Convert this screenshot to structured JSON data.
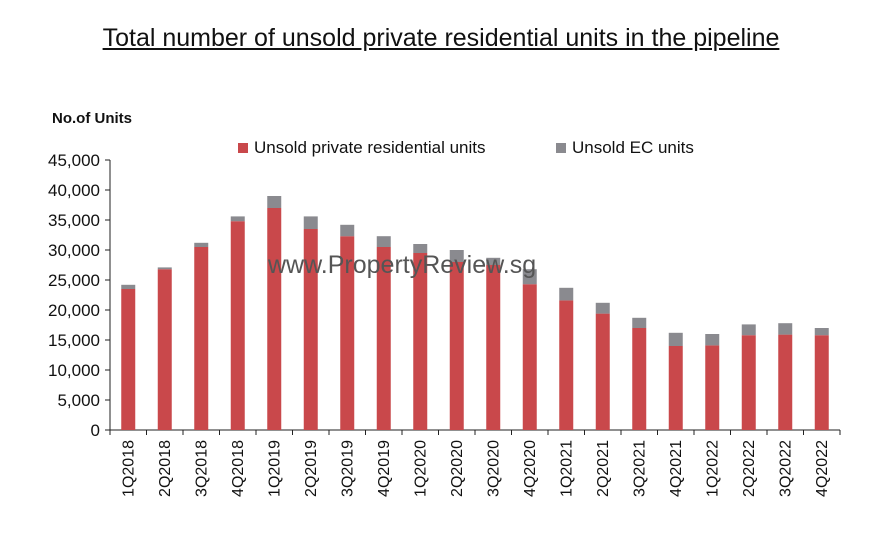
{
  "chart_data": {
    "type": "bar",
    "stacked": true,
    "title": "Total number of unsold private residential units in the pipeline",
    "ylabel": "No.of Units",
    "xlabel": "",
    "ylim": [
      0,
      45000
    ],
    "yticks": [
      "45,000",
      "40,000",
      "35,000",
      "30,000",
      "25,000",
      "20,000",
      "15,000",
      "10,000",
      "5,000",
      "0"
    ],
    "ytick_values": [
      45000,
      40000,
      35000,
      30000,
      25000,
      20000,
      15000,
      10000,
      5000,
      0
    ],
    "categories": [
      "1Q2018",
      "2Q2018",
      "3Q2018",
      "4Q2018",
      "1Q2019",
      "2Q2019",
      "3Q2019",
      "4Q2019",
      "1Q2020",
      "2Q2020",
      "3Q2020",
      "4Q2020",
      "1Q2021",
      "2Q2021",
      "3Q2021",
      "4Q2021",
      "1Q2022",
      "2Q2022",
      "3Q2022",
      "4Q2022"
    ],
    "series": [
      {
        "name": "Unsold private residential units",
        "color": "#c9484b",
        "values": [
          23500,
          26800,
          30500,
          34800,
          37000,
          33500,
          32300,
          30500,
          29500,
          28000,
          27500,
          24300,
          21600,
          19400,
          17000,
          14000,
          14100,
          15800,
          15900,
          15800
        ]
      },
      {
        "name": "Unsold EC units",
        "color": "#8a8a8f",
        "values": [
          700,
          300,
          700,
          800,
          2000,
          2100,
          1900,
          1800,
          1500,
          2000,
          1200,
          2500,
          2100,
          1800,
          1700,
          2200,
          1900,
          1800,
          1900,
          1200
        ]
      }
    ],
    "legend_position": "top",
    "grid": false,
    "watermark": "www.PropertyReview.sg"
  }
}
